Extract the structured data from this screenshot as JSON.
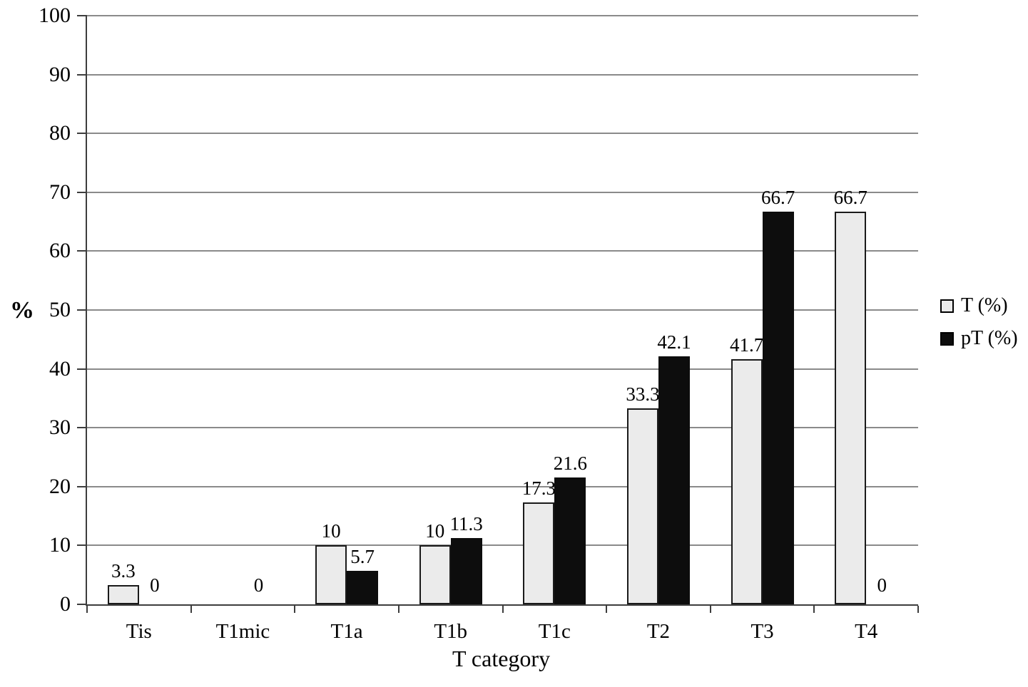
{
  "chart_data": {
    "type": "bar",
    "title": "",
    "xlabel": "T category",
    "ylabel": "%",
    "ylim": [
      0,
      100
    ],
    "yticks": [
      0,
      10,
      20,
      30,
      40,
      50,
      60,
      70,
      80,
      90,
      100
    ],
    "grid": true,
    "legend_position": "right",
    "categories": [
      "Tis",
      "T1mic",
      "T1a",
      "T1b",
      "T1c",
      "T2",
      "T3",
      "T4"
    ],
    "series": [
      {
        "name": "T (%)",
        "color": "#ebebeb",
        "border_color": "#1a1a1a",
        "values": [
          3.3,
          null,
          10,
          10,
          17.3,
          33.3,
          41.7,
          66.7
        ],
        "labels": [
          "3.3",
          "",
          "10",
          "10",
          "17.3",
          "33.3",
          "41.7",
          "66.7"
        ]
      },
      {
        "name": "pT (%)",
        "color": "#0d0d0d",
        "border_color": "#0d0d0d",
        "values": [
          0,
          0,
          5.7,
          11.3,
          21.6,
          42.1,
          66.7,
          0
        ],
        "labels": [
          "0",
          "0",
          "5.7",
          "11.3",
          "21.6",
          "42.1",
          "66.7",
          "0"
        ]
      }
    ]
  },
  "colors": {
    "background": "#ffffff",
    "gridline": "#8a8a8a",
    "axis": "#3d3d3d",
    "text": "#000000"
  }
}
